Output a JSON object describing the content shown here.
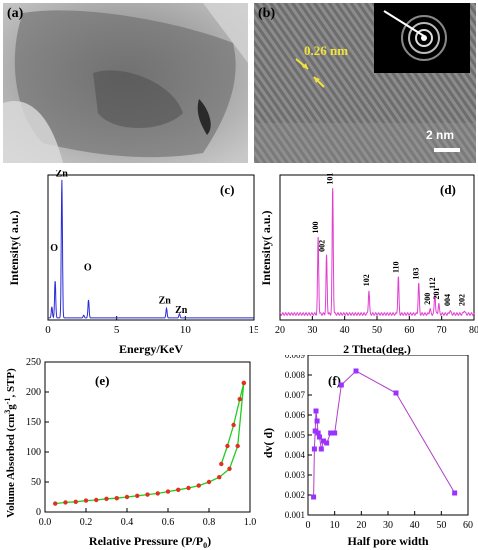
{
  "panels": {
    "a": {
      "label": "(a)"
    },
    "b": {
      "label": "(b)",
      "lattice_text": "0.26 nm",
      "scalebar_text": "2 nm"
    },
    "c": {
      "label": "(c)"
    },
    "d": {
      "label": "(d)"
    },
    "e": {
      "label": "(e)"
    },
    "f": {
      "label": "(f)"
    }
  },
  "colors": {
    "eds_line": "#2b2bd8",
    "xrd_line": "#e040d0",
    "bet_line": "#22cc22",
    "bet_marker": "#e03020",
    "pore_line": "#b040c8",
    "pore_marker": "#9b30ff",
    "arrow": "#f2e33a"
  },
  "chart_data": [
    {
      "type": "line",
      "panel": "c",
      "xlabel": "Energy/KeV",
      "ylabel": "Intensity(  a.u.)",
      "xlim": [
        0,
        15
      ],
      "xticks": [
        0,
        5,
        10,
        15
      ],
      "peaks": [
        {
          "x": 0.28,
          "y": 0.08
        },
        {
          "x": 0.52,
          "y": 0.27
        },
        {
          "x": 1.01,
          "y": 1.0
        },
        {
          "x": 2.6,
          "y": 0.02
        },
        {
          "x": 2.95,
          "y": 0.13
        },
        {
          "x": 8.63,
          "y": 0.07
        },
        {
          "x": 9.57,
          "y": 0.03
        }
      ],
      "annotations": [
        {
          "text": "Zn",
          "x": 1.0,
          "y": 1.04
        },
        {
          "text": "O",
          "x": 0.45,
          "y": 0.5
        },
        {
          "text": "O",
          "x": 2.9,
          "y": 0.36
        },
        {
          "text": "Zn",
          "x": 8.5,
          "y": 0.12
        },
        {
          "text": "Zn",
          "x": 9.7,
          "y": 0.05
        }
      ]
    },
    {
      "type": "line",
      "panel": "d",
      "xlabel": "2 Theta(deg.)",
      "ylabel": "Intensity(  a.u.)",
      "xlim": [
        20,
        80
      ],
      "xticks": [
        20,
        30,
        40,
        50,
        60,
        70,
        80
      ],
      "peaks": [
        {
          "x": 31.8,
          "y": 0.58,
          "label": "100"
        },
        {
          "x": 34.4,
          "y": 0.44,
          "label": "002"
        },
        {
          "x": 36.3,
          "y": 0.95,
          "label": "101"
        },
        {
          "x": 47.5,
          "y": 0.18,
          "label": "102"
        },
        {
          "x": 56.6,
          "y": 0.28,
          "label": "110"
        },
        {
          "x": 62.9,
          "y": 0.23,
          "label": "103"
        },
        {
          "x": 66.4,
          "y": 0.04,
          "label": "200"
        },
        {
          "x": 67.9,
          "y": 0.16,
          "label": "112"
        },
        {
          "x": 69.1,
          "y": 0.08,
          "label": "201"
        },
        {
          "x": 72.6,
          "y": 0.03,
          "label": "004"
        },
        {
          "x": 77.0,
          "y": 0.03,
          "label": "202"
        }
      ]
    },
    {
      "type": "line",
      "panel": "e",
      "xlabel": "Relative Pressure (P/P",
      "xlabel_sub": "0",
      "xlabel_close": ")",
      "ylabel": "Volume Absorbed (cm",
      "ylabel_sup1": "3",
      "ylabel_mid": "g",
      "ylabel_sup2": "-1",
      "ylabel_end": ", STP)",
      "xlim": [
        0.0,
        1.0
      ],
      "ylim": [
        0,
        250
      ],
      "xticks": [
        "0.0",
        "0.2",
        "0.4",
        "0.6",
        "0.8",
        "1.0"
      ],
      "yticks": [
        0,
        50,
        100,
        150,
        200,
        250
      ],
      "series": [
        {
          "x": [
            0.05,
            0.1,
            0.15,
            0.2,
            0.25,
            0.3,
            0.35,
            0.4,
            0.45,
            0.5,
            0.55,
            0.6,
            0.65,
            0.7,
            0.75,
            0.8,
            0.85,
            0.9,
            0.94,
            0.97
          ],
          "values": [
            14,
            16,
            17,
            19,
            20,
            22,
            23,
            25,
            27,
            29,
            31,
            34,
            37,
            40,
            44,
            50,
            58,
            72,
            110,
            215
          ]
        },
        {
          "x": [
            0.97,
            0.95,
            0.92,
            0.89,
            0.86
          ],
          "values": [
            215,
            188,
            145,
            110,
            80
          ]
        }
      ]
    },
    {
      "type": "line",
      "panel": "f",
      "xlabel": "Half pore width",
      "ylabel": "dv(   d)",
      "xlim": [
        0,
        60
      ],
      "ylim": [
        0.001,
        0.009
      ],
      "xticks": [
        0,
        10,
        20,
        30,
        40,
        50,
        60
      ],
      "yticks": [
        "0.001",
        "0.002",
        "0.003",
        "0.004",
        "0.005",
        "0.006",
        "0.007",
        "0.008",
        "0.009"
      ],
      "series": [
        {
          "x": [
            2.1,
            2.4,
            2.7,
            3.0,
            3.4,
            3.8,
            4.3,
            5.0,
            5.8,
            7.0,
            8.5,
            10.0,
            12.5,
            18.0,
            33.0,
            55.0
          ],
          "values": [
            0.0019,
            0.0043,
            0.0052,
            0.0062,
            0.0057,
            0.0051,
            0.0049,
            0.0043,
            0.0047,
            0.0046,
            0.0051,
            0.0051,
            0.0075,
            0.0082,
            0.0071,
            0.0021
          ]
        }
      ]
    }
  ]
}
